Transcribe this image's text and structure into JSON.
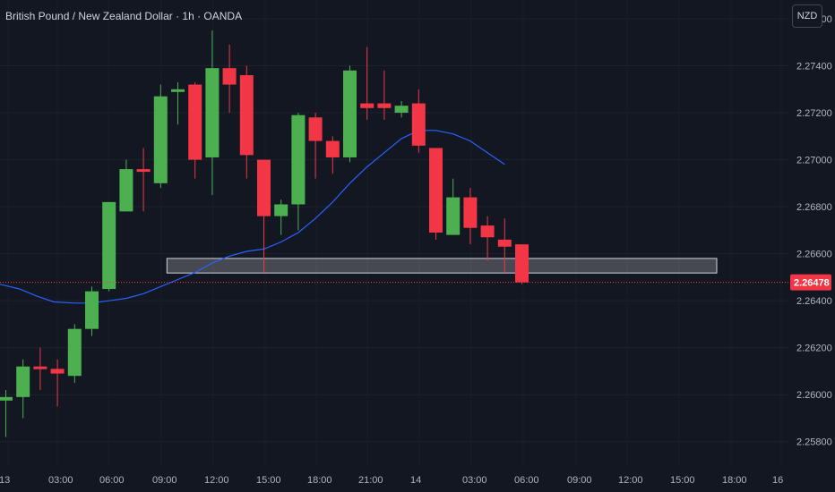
{
  "header": {
    "title": "British Pound / New Zealand Dollar · 1h · OANDA",
    "currency_button": "NZD"
  },
  "chart_data": {
    "type": "candlestick",
    "instrument": "British Pound / New Zealand Dollar",
    "timeframe": "1h",
    "source": "OANDA",
    "currency": "NZD",
    "ylim": [
      2.257,
      2.2768
    ],
    "y_ticks": [
      "2.27600",
      "2.27400",
      "2.27200",
      "2.27000",
      "2.26800",
      "2.26600",
      "2.26400",
      "2.26200",
      "2.26000",
      "2.25800"
    ],
    "x_ticks": [
      "13",
      "03:00",
      "06:00",
      "09:00",
      "12:00",
      "15:00",
      "18:00",
      "21:00",
      "14",
      "03:00",
      "06:00",
      "09:00",
      "12:00",
      "15:00",
      "18:00",
      "16"
    ],
    "last_price": "2.26478",
    "colors": {
      "up": "#4caf50",
      "down": "#f23645",
      "ma": "#2962ff",
      "background": "#131722",
      "zone": "#ffffff"
    },
    "candles": [
      {
        "o": 2.25975,
        "h": 2.2602,
        "l": 2.2582,
        "c": 2.2599
      },
      {
        "o": 2.2599,
        "h": 2.2615,
        "l": 2.259,
        "c": 2.2612
      },
      {
        "o": 2.2612,
        "h": 2.262,
        "l": 2.2602,
        "c": 2.2611
      },
      {
        "o": 2.2611,
        "h": 2.2615,
        "l": 2.2595,
        "c": 2.2609
      },
      {
        "o": 2.2608,
        "h": 2.263,
        "l": 2.2605,
        "c": 2.2628
      },
      {
        "o": 2.2628,
        "h": 2.2646,
        "l": 2.2625,
        "c": 2.2644
      },
      {
        "o": 2.2645,
        "h": 2.2682,
        "l": 2.2644,
        "c": 2.2682
      },
      {
        "o": 2.2678,
        "h": 2.27,
        "l": 2.2678,
        "c": 2.2696
      },
      {
        "o": 2.2696,
        "h": 2.2705,
        "l": 2.2678,
        "c": 2.2695
      },
      {
        "o": 2.269,
        "h": 2.2732,
        "l": 2.2688,
        "c": 2.2727
      },
      {
        "o": 2.2729,
        "h": 2.2733,
        "l": 2.2715,
        "c": 2.273
      },
      {
        "o": 2.2732,
        "h": 2.2733,
        "l": 2.2692,
        "c": 2.27
      },
      {
        "o": 2.2701,
        "h": 2.2755,
        "l": 2.2685,
        "c": 2.2739
      },
      {
        "o": 2.2739,
        "h": 2.2749,
        "l": 2.272,
        "c": 2.2732
      },
      {
        "o": 2.2736,
        "h": 2.274,
        "l": 2.2692,
        "c": 2.2702
      },
      {
        "o": 2.27,
        "h": 2.27,
        "l": 2.2652,
        "c": 2.2676
      },
      {
        "o": 2.2676,
        "h": 2.2683,
        "l": 2.2668,
        "c": 2.2681
      },
      {
        "o": 2.2681,
        "h": 2.272,
        "l": 2.267,
        "c": 2.2719
      },
      {
        "o": 2.2718,
        "h": 2.272,
        "l": 2.2692,
        "c": 2.2708
      },
      {
        "o": 2.2708,
        "h": 2.271,
        "l": 2.2694,
        "c": 2.2701
      },
      {
        "o": 2.2701,
        "h": 2.274,
        "l": 2.2699,
        "c": 2.2738
      },
      {
        "o": 2.2724,
        "h": 2.2748,
        "l": 2.2717,
        "c": 2.2722
      },
      {
        "o": 2.2724,
        "h": 2.2738,
        "l": 2.2717,
        "c": 2.2722
      },
      {
        "o": 2.272,
        "h": 2.2725,
        "l": 2.2718,
        "c": 2.2723
      },
      {
        "o": 2.2724,
        "h": 2.273,
        "l": 2.2703,
        "c": 2.2706
      },
      {
        "o": 2.2705,
        "h": 2.2705,
        "l": 2.2666,
        "c": 2.2669
      },
      {
        "o": 2.2668,
        "h": 2.2692,
        "l": 2.2668,
        "c": 2.2684
      },
      {
        "o": 2.2684,
        "h": 2.2688,
        "l": 2.2664,
        "c": 2.2671
      },
      {
        "o": 2.2672,
        "h": 2.2676,
        "l": 2.2657,
        "c": 2.2667
      },
      {
        "o": 2.2666,
        "h": 2.2675,
        "l": 2.2652,
        "c": 2.2663
      },
      {
        "o": 2.2664,
        "h": 2.2664,
        "l": 2.2647,
        "c": 2.26478
      }
    ],
    "moving_average": [
      2.2647,
      2.2645,
      2.2642,
      2.26395,
      2.2639,
      2.2639,
      2.264,
      2.2641,
      2.2643,
      2.2646,
      2.2649,
      2.2652,
      2.2656,
      2.2659,
      2.2661,
      2.2662,
      2.2665,
      2.2669,
      2.2675,
      2.2682,
      2.269,
      2.2697,
      2.2703,
      2.2709,
      2.27125,
      2.27125,
      2.2711,
      2.2708,
      2.2703,
      2.2698
    ],
    "zone": {
      "from_index": 10.2,
      "to_index": 44.2,
      "top": 2.2658,
      "bottom": 2.26518
    }
  }
}
